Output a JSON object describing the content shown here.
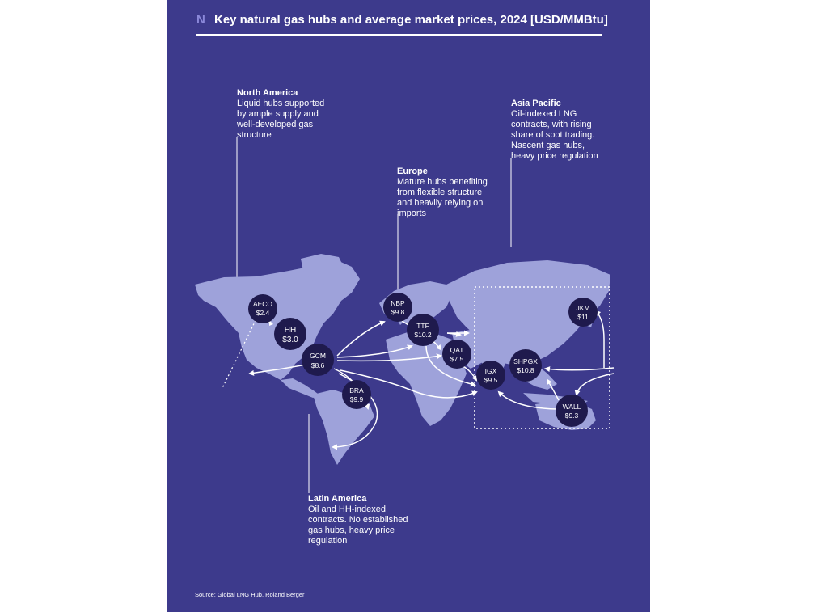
{
  "header": {
    "mark": "N",
    "title": "Key natural gas hubs and average market prices, 2024 [USD/MMBtu]"
  },
  "colors": {
    "background": "#3d3a8c",
    "land": "#9ea2da",
    "hub_circle": "#1f1a4d",
    "text": "#ffffff",
    "arrow": "#ffffff"
  },
  "regions": {
    "north_america": {
      "title": "North America",
      "body": "Liquid hubs supported\nby ample supply and\nwell-developed gas\nstructure"
    },
    "europe": {
      "title": "Europe",
      "body": "Mature hubs benefiting\nfrom flexible structure\nand heavily relying on\nimports"
    },
    "asia_pacific": {
      "title": "Asia Pacific",
      "body": "Oil-indexed LNG\ncontracts, with rising\nshare of spot trading.\nNascent gas hubs,\nheavy price regulation"
    },
    "latin_america": {
      "title": "Latin America",
      "body": "Oil and HH-indexed\ncontracts. No established\ngas hubs, heavy price\nregulation"
    }
  },
  "hubs": [
    {
      "id": "aeco",
      "name": "AECO",
      "price": "$2.4"
    },
    {
      "id": "hh",
      "name": "HH",
      "price": "$3.0"
    },
    {
      "id": "gcm",
      "name": "GCM",
      "price": "$8.6"
    },
    {
      "id": "bra",
      "name": "BRA",
      "price": "$9.9"
    },
    {
      "id": "nbp",
      "name": "NBP",
      "price": "$9.8"
    },
    {
      "id": "ttf",
      "name": "TTF",
      "price": "$10.2"
    },
    {
      "id": "qat",
      "name": "QAT",
      "price": "$7.5"
    },
    {
      "id": "igx",
      "name": "IGX",
      "price": "$9.5"
    },
    {
      "id": "shpgx",
      "name": "SHPGX",
      "price": "$10.8"
    },
    {
      "id": "jkm",
      "name": "JKM",
      "price": "$11"
    },
    {
      "id": "wall",
      "name": "WALL",
      "price": "$9.3"
    }
  ],
  "source": "Source: Global LNG Hub, Roland Berger"
}
